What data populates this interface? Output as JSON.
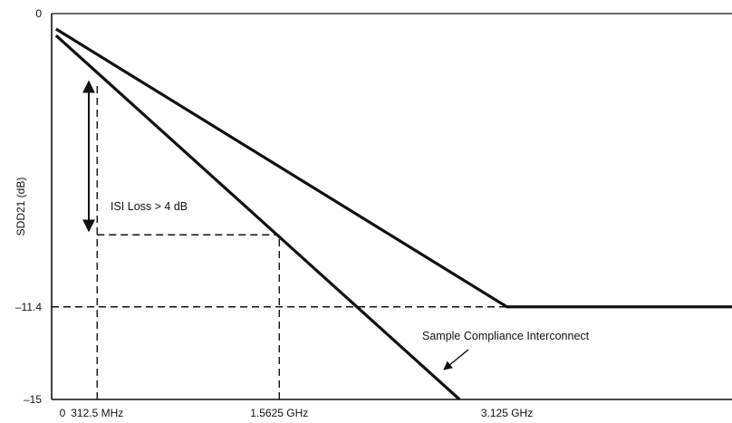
{
  "chart_data": {
    "type": "line",
    "title": "",
    "xlabel": "",
    "ylabel": "SDD21 (dB)",
    "x_ticks": [
      {
        "value": 0,
        "label": "0"
      },
      {
        "value": 0.3125,
        "label": "312.5 MHz"
      },
      {
        "value": 1.5625,
        "label": "1.5625 GHz"
      },
      {
        "value": 3.125,
        "label": "3.125 GHz"
      }
    ],
    "y_ticks": [
      {
        "value": 0,
        "label": "0"
      },
      {
        "value": -11.4,
        "label": "–11.4"
      },
      {
        "value": -15,
        "label": "–15"
      }
    ],
    "xlim": [
      0,
      4.67
    ],
    "ylim": [
      -15,
      0
    ],
    "grid": false,
    "series": [
      {
        "x": [
          0.03,
          3.125,
          4.67
        ],
        "y": [
          -0.6,
          -11.4,
          -11.4
        ]
      },
      {
        "x": [
          0.03,
          2.8
        ],
        "y": [
          -0.85,
          -15
        ]
      }
    ],
    "reference_lines": [
      {
        "orientation": "vertical",
        "x": 0.3125,
        "y_from": -15,
        "y_to": -2.7
      },
      {
        "orientation": "vertical",
        "x": 1.5625,
        "y_from": -15,
        "y_to": -8.6
      },
      {
        "orientation": "horizontal",
        "y": -8.6,
        "x_from": 0.3125,
        "x_to": 1.5625
      },
      {
        "orientation": "horizontal",
        "y": -11.4,
        "x_from": 0,
        "x_to": 4.67
      }
    ],
    "annotations": {
      "isi_label": "ISI Loss > 4 dB",
      "compliance_label": "Sample Compliance Interconnect"
    }
  }
}
